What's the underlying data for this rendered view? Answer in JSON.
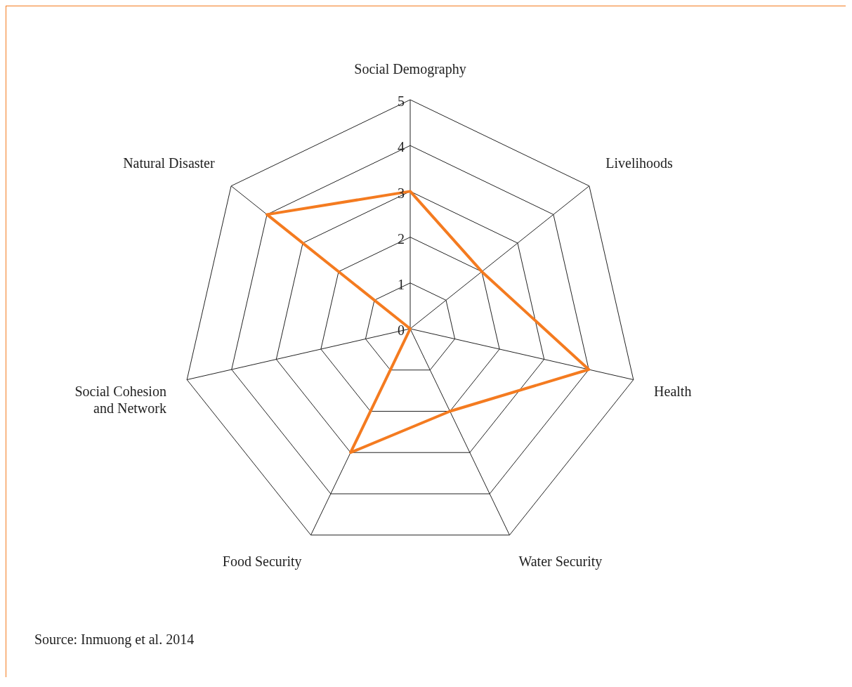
{
  "chart_data": {
    "type": "radar",
    "categories": [
      "Social Demography",
      "Livelihoods",
      "Health",
      "Water Security",
      "Food Security",
      "Social Cohesion and Network",
      "Natural Disaster"
    ],
    "series": [
      {
        "color": "#f47b20",
        "values": [
          3,
          2,
          4,
          2,
          3,
          0,
          4
        ]
      }
    ],
    "ylim": [
      0,
      5
    ],
    "yticks": [
      0,
      1,
      2,
      3,
      4,
      5
    ],
    "grid": true,
    "legend": false,
    "marker": "none",
    "annotations": [
      "Source: Inmuong et al. 2014"
    ]
  }
}
